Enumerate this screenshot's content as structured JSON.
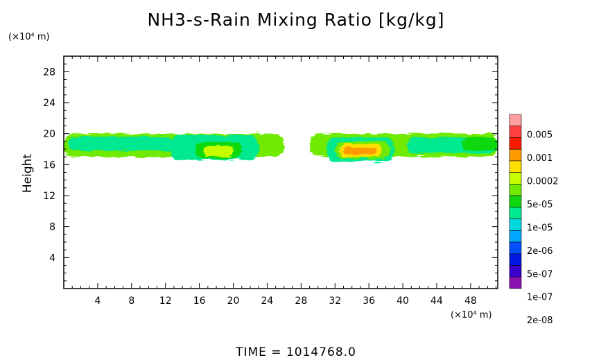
{
  "chart_data": {
    "type": "heatmap",
    "title": "NH3-s-Rain Mixing Ratio [kg/kg]",
    "ylabel": "Height",
    "x_unit": "(×10⁴ m)",
    "y_unit": "(×10⁴ m)",
    "footer": "TIME = 1014768.0",
    "xlim": [
      0,
      51.2
    ],
    "ylim": [
      0,
      30
    ],
    "x_ticks": [
      4,
      8,
      12,
      16,
      20,
      24,
      28,
      32,
      36,
      40,
      44,
      48
    ],
    "y_ticks": [
      4,
      8,
      12,
      16,
      20,
      24,
      28
    ],
    "legend": {
      "labels": [
        "0.005",
        "0.001",
        "0.0002",
        "5e-05",
        "1e-05",
        "2e-06",
        "5e-07",
        "1e-07",
        "2e-08"
      ],
      "colors": [
        "#ff9e9e",
        "#ff4040",
        "#ff1a00",
        "#ff9a00",
        "#ffe000",
        "#c8ff00",
        "#70ea00",
        "#10d810",
        "#00e890",
        "#00d8e0",
        "#00a8ff",
        "#0050ff",
        "#0018e0",
        "#3800c8",
        "#8a10b0"
      ]
    },
    "regions": [
      {
        "x0": 0.0,
        "x1": 26.0,
        "y0": 17.0,
        "y1": 20.0,
        "level": 6
      },
      {
        "x0": 0.5,
        "x1": 13.0,
        "y0": 17.8,
        "y1": 19.6,
        "level": 8
      },
      {
        "x0": 12.5,
        "x1": 23.0,
        "y0": 16.6,
        "y1": 19.8,
        "level": 8
      },
      {
        "x0": 15.5,
        "x1": 21.0,
        "y0": 16.8,
        "y1": 18.9,
        "level": 7
      },
      {
        "x0": 16.5,
        "x1": 20.0,
        "y0": 17.0,
        "y1": 18.4,
        "level": 5
      },
      {
        "x0": 29.0,
        "x1": 51.2,
        "y0": 17.0,
        "y1": 20.0,
        "level": 6
      },
      {
        "x0": 31.0,
        "x1": 39.0,
        "y0": 16.4,
        "y1": 19.5,
        "level": 8
      },
      {
        "x0": 32.0,
        "x1": 38.5,
        "y0": 16.8,
        "y1": 19.0,
        "level": 6
      },
      {
        "x0": 32.5,
        "x1": 37.5,
        "y0": 17.0,
        "y1": 18.7,
        "level": 4
      },
      {
        "x0": 33.0,
        "x1": 37.0,
        "y0": 17.3,
        "y1": 18.3,
        "level": 3
      },
      {
        "x0": 40.5,
        "x1": 51.2,
        "y0": 17.5,
        "y1": 19.5,
        "level": 8
      },
      {
        "x0": 47.0,
        "x1": 51.2,
        "y0": 17.8,
        "y1": 19.5,
        "level": 7
      }
    ]
  }
}
